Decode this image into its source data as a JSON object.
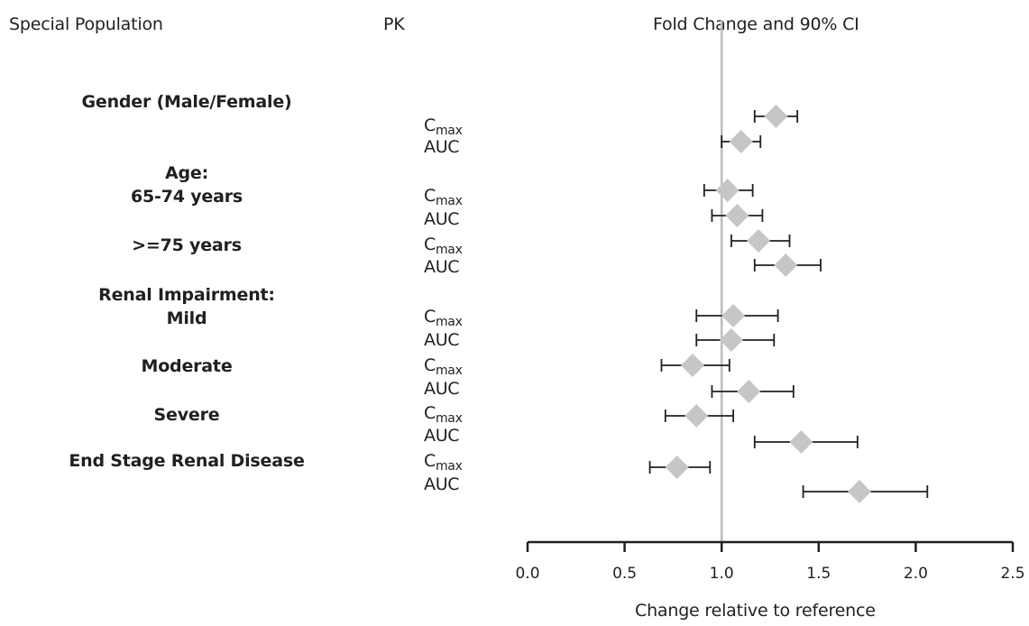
{
  "headers": {
    "population": "Special Population",
    "pk": "PK",
    "fold_change": "Fold Change and 90% CI"
  },
  "groups": [
    {
      "id": "gender",
      "lines": [
        "Gender (Male/Female)"
      ]
    },
    {
      "id": "age",
      "lines": [
        "Age:",
        "65-74 years"
      ]
    },
    {
      "id": "age75",
      "lines": [
        ">=75 years"
      ]
    },
    {
      "id": "renal",
      "lines": [
        "Renal Impairment:",
        "Mild"
      ]
    },
    {
      "id": "moderate",
      "lines": [
        "Moderate"
      ]
    },
    {
      "id": "severe",
      "lines": [
        "Severe"
      ]
    },
    {
      "id": "esrd",
      "lines": [
        "End Stage Renal Disease"
      ]
    }
  ],
  "pk_labels": {
    "cmax_main": "C",
    "cmax_sub": "max",
    "auc": "AUC"
  },
  "colors": {
    "marker": "#c6c6c6",
    "ci_line": "#231f20",
    "reference_line": "#bdbdbd",
    "text": "#231f20"
  },
  "chart_data": {
    "type": "forest",
    "title": "Fold Change and 90% CI",
    "xlabel": "Change relative to reference",
    "xlim": [
      0.0,
      2.5
    ],
    "xticks": [
      "0.0",
      "0.5",
      "1.0",
      "1.5",
      "2.0",
      "2.5"
    ],
    "reference_value": 1.0,
    "rows": [
      {
        "group": "Gender (Male/Female)",
        "pk": "Cmax",
        "estimate": 1.28,
        "ci": [
          1.17,
          1.39
        ]
      },
      {
        "group": "Gender (Male/Female)",
        "pk": "AUC",
        "estimate": 1.1,
        "ci": [
          1.0,
          1.2
        ]
      },
      {
        "group": "Age: 65-74 years",
        "pk": "Cmax",
        "estimate": 1.03,
        "ci": [
          0.91,
          1.16
        ]
      },
      {
        "group": "Age: 65-74 years",
        "pk": "AUC",
        "estimate": 1.08,
        "ci": [
          0.95,
          1.21
        ]
      },
      {
        "group": ">=75 years",
        "pk": "Cmax",
        "estimate": 1.19,
        "ci": [
          1.05,
          1.35
        ]
      },
      {
        "group": ">=75 years",
        "pk": "AUC",
        "estimate": 1.33,
        "ci": [
          1.17,
          1.51
        ]
      },
      {
        "group": "Renal Impairment: Mild",
        "pk": "Cmax",
        "estimate": 1.06,
        "ci": [
          0.87,
          1.29
        ]
      },
      {
        "group": "Renal Impairment: Mild",
        "pk": "AUC",
        "estimate": 1.05,
        "ci": [
          0.87,
          1.27
        ]
      },
      {
        "group": "Moderate",
        "pk": "Cmax",
        "estimate": 0.85,
        "ci": [
          0.69,
          1.04
        ]
      },
      {
        "group": "Moderate",
        "pk": "AUC",
        "estimate": 1.14,
        "ci": [
          0.95,
          1.37
        ]
      },
      {
        "group": "Severe",
        "pk": "Cmax",
        "estimate": 0.87,
        "ci": [
          0.71,
          1.06
        ]
      },
      {
        "group": "Severe",
        "pk": "AUC",
        "estimate": 1.41,
        "ci": [
          1.17,
          1.7
        ]
      },
      {
        "group": "End Stage Renal Disease",
        "pk": "Cmax",
        "estimate": 0.77,
        "ci": [
          0.63,
          0.94
        ]
      },
      {
        "group": "End Stage Renal Disease",
        "pk": "AUC",
        "estimate": 1.71,
        "ci": [
          1.42,
          2.06
        ]
      }
    ]
  }
}
